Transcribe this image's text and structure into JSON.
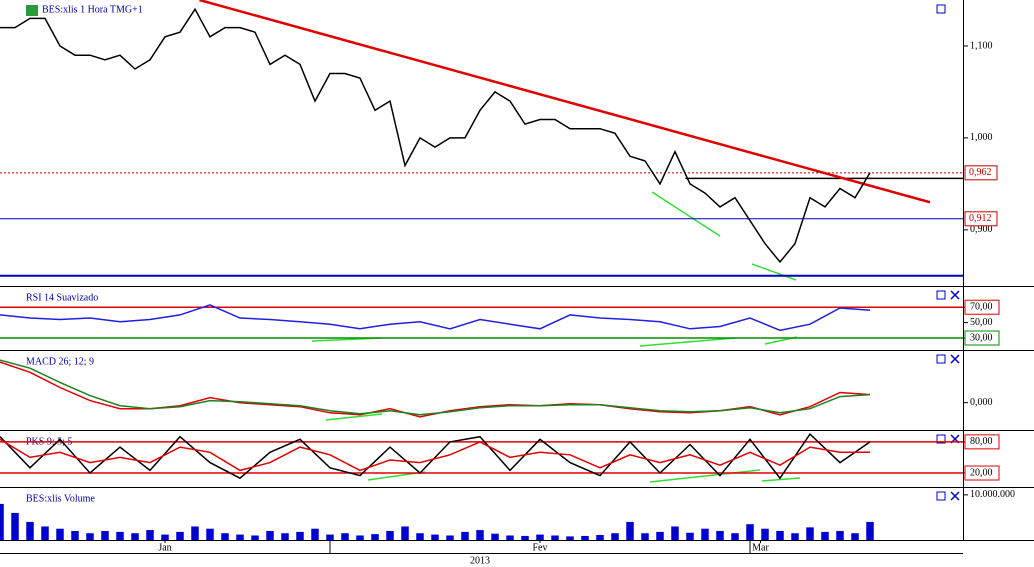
{
  "chart_data": [
    {
      "type": "line",
      "title": "BES:xlis 1 Hora TMG+1",
      "series": [
        {
          "color": "#000000",
          "values": [
            1.12,
            1.12,
            1.13,
            1.13,
            1.1,
            1.09,
            1.09,
            1.085,
            1.09,
            1.075,
            1.085,
            1.11,
            1.115,
            1.14,
            1.11,
            1.12,
            1.12,
            1.115,
            1.08,
            1.09,
            1.08,
            1.04,
            1.07,
            1.07,
            1.065,
            1.03,
            1.04,
            0.97,
            1.0,
            0.99,
            1.0,
            1.0,
            1.03,
            1.05,
            1.04,
            1.015,
            1.02,
            1.02,
            1.01,
            1.01,
            1.01,
            1.005,
            0.98,
            0.975,
            0.95,
            0.985,
            0.95,
            0.94,
            0.925,
            0.935,
            0.91,
            0.885,
            0.865,
            0.885,
            0.935,
            0.925,
            0.945,
            0.935,
            0.962
          ]
        }
      ],
      "ylim": [
        0.84,
        1.15
      ],
      "yticks": [
        {
          "value": 1.1,
          "label": "1,100"
        },
        {
          "value": 1.0,
          "label": "1,000"
        },
        {
          "value": 0.9,
          "label": "0,900"
        }
      ],
      "price_labels": [
        {
          "value": 0.962,
          "label": "0,962",
          "color": "#c00000",
          "line_color": "#c00000",
          "dash": true
        },
        {
          "value": 0.912,
          "label": "0,912",
          "color": "#c00000",
          "line_color": "#0000c0",
          "dash": false
        }
      ],
      "levels": [
        {
          "value": 0.85,
          "color": "#0000c0",
          "from": 0
        },
        {
          "value": 0.956,
          "color": "#000000",
          "from": 45.7
        }
      ],
      "trendline": {
        "color": "#e00000",
        "x": [
          13.3,
          62
        ],
        "y": [
          1.15,
          0.93
        ]
      },
      "months": [
        {
          "value": 11,
          "label": "Jan"
        },
        {
          "value": 36,
          "label": "Fev"
        },
        {
          "value": 50.7,
          "label": "Mar"
        }
      ],
      "month_starts": [
        22,
        50
      ],
      "year": "2013"
    },
    {
      "type": "line",
      "title": "RSI 14 Suavizado",
      "series": [
        {
          "color": "#2020e0",
          "values": [
            60,
            56,
            54,
            56,
            51,
            54,
            60,
            73,
            56,
            54,
            51,
            48,
            42,
            48,
            51,
            42,
            54,
            48,
            42,
            60,
            56,
            54,
            51,
            42,
            45,
            56,
            40,
            48,
            69,
            66
          ]
        }
      ],
      "ylim": [
        17,
        95
      ],
      "yticks": [
        {
          "value": 70,
          "label": "70,00"
        },
        {
          "value": 50,
          "label": "50,00"
        },
        {
          "value": 30,
          "label": "30,00"
        }
      ],
      "levels": [
        {
          "value": 70,
          "color": "#e00000"
        },
        {
          "value": 30,
          "color": "#009000"
        }
      ]
    },
    {
      "type": "line",
      "title": "MACD 26; 12; 9",
      "series": [
        {
          "color": "#e00000",
          "values": [
            0.04,
            0.03,
            0.015,
            0.002,
            -0.006,
            -0.006,
            -0.003,
            0.005,
            0.0,
            -0.002,
            -0.004,
            -0.01,
            -0.012,
            -0.006,
            -0.014,
            -0.008,
            -0.004,
            -0.002,
            -0.003,
            -0.001,
            -0.002,
            -0.006,
            -0.009,
            -0.01,
            -0.008,
            -0.004,
            -0.012,
            -0.004,
            0.01,
            0.008
          ]
        },
        {
          "color": "#208020",
          "values": [
            0.042,
            0.034,
            0.02,
            0.007,
            -0.003,
            -0.006,
            -0.004,
            0.002,
            0.001,
            -0.001,
            -0.003,
            -0.008,
            -0.011,
            -0.008,
            -0.012,
            -0.009,
            -0.005,
            -0.003,
            -0.003,
            -0.002,
            -0.002,
            -0.005,
            -0.008,
            -0.009,
            -0.008,
            -0.005,
            -0.01,
            -0.006,
            0.006,
            0.008
          ]
        }
      ],
      "ylim": [
        -0.025,
        0.05
      ],
      "yticks": [
        {
          "value": 0,
          "label": "0,000"
        }
      ],
      "levels": []
    },
    {
      "type": "line",
      "title": "PKS 9; 5; 5",
      "series": [
        {
          "color": "#000000",
          "values": [
            90,
            30,
            85,
            20,
            70,
            25,
            90,
            40,
            10,
            60,
            85,
            30,
            15,
            70,
            20,
            80,
            90,
            25,
            85,
            40,
            15,
            80,
            20,
            75,
            15,
            85,
            10,
            95,
            40,
            80
          ]
        },
        {
          "color": "#e00000",
          "values": [
            85,
            50,
            60,
            40,
            50,
            40,
            70,
            60,
            25,
            40,
            70,
            55,
            25,
            45,
            40,
            55,
            80,
            50,
            60,
            55,
            30,
            55,
            40,
            55,
            35,
            60,
            35,
            70,
            60,
            60
          ]
        }
      ],
      "ylim": [
        -5,
        99
      ],
      "yticks": [
        {
          "value": 80,
          "label": "80,00"
        },
        {
          "value": 20,
          "label": "20,00"
        }
      ],
      "levels": [
        {
          "value": 80,
          "color": "#e00000"
        },
        {
          "value": 20,
          "color": "#e00000"
        }
      ]
    },
    {
      "type": "bar",
      "title": "BES:xlis Volume",
      "color": "#0000d0",
      "values": [
        8000000,
        6000000,
        4000000,
        3000000,
        2500000,
        2000000,
        1500000,
        2000000,
        1800000,
        1500000,
        2200000,
        1200000,
        1800000,
        3000000,
        2500000,
        1500000,
        1200000,
        1000000,
        2000000,
        1500000,
        1800000,
        2500000,
        1200000,
        1500000,
        1000000,
        1300000,
        2000000,
        3000000,
        1500000,
        1200000,
        1000000,
        1800000,
        2200000,
        1400000,
        1000000,
        900000,
        1200000,
        1000000,
        800000,
        900000,
        1100000,
        1500000,
        4000000,
        1500000,
        1800000,
        3000000,
        1600000,
        2500000,
        2000000,
        1500000,
        3500000,
        2500000,
        2000000,
        1500000,
        2800000,
        1800000,
        2000000,
        1500000,
        4000000
      ],
      "ylim": [
        0,
        11300000
      ],
      "yticks": [
        {
          "value": 10000000,
          "label": "10.000.000"
        }
      ],
      "levels": []
    }
  ]
}
